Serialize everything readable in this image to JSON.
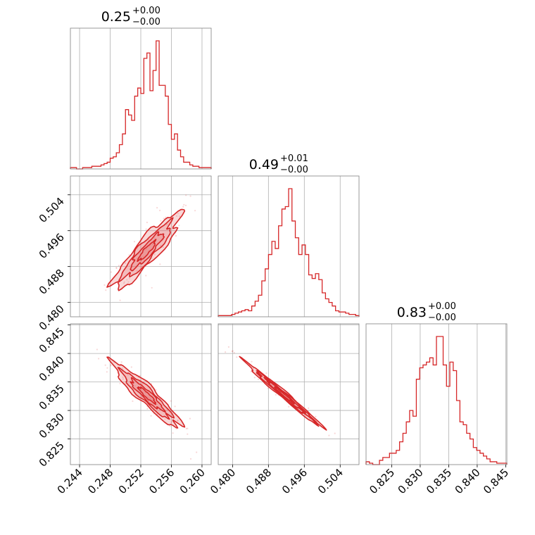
{
  "colors": {
    "series": "#d62728",
    "fill": "#e57373",
    "grid": "#b0b0b0",
    "axes": "#808080"
  },
  "chart_data": {
    "type": "corner",
    "grid": true,
    "parameters": [
      {
        "name": "p0",
        "title_value": "0.25",
        "title_plus": "+0.00",
        "title_minus": "−0.00",
        "range": [
          0.2428,
          0.2612
        ],
        "ticks": [
          "0.244",
          "0.248",
          "0.252",
          "0.256",
          "0.260"
        ]
      },
      {
        "name": "p1",
        "title_value": "0.49",
        "title_plus": "+0.01",
        "title_minus": "−0.00",
        "range": [
          0.4768,
          0.5082
        ],
        "ticks": [
          "0.480",
          "0.488",
          "0.496",
          "0.504"
        ]
      },
      {
        "name": "p2",
        "title_value": "0.83",
        "title_plus": "+0.00",
        "title_minus": "−0.00",
        "range": [
          0.8205,
          0.8452
        ],
        "ticks": [
          "0.825",
          "0.830",
          "0.835",
          "0.840",
          "0.845"
        ]
      }
    ],
    "histograms": [
      {
        "param": 0,
        "counts": [
          1,
          1,
          0,
          0,
          1,
          1,
          1,
          2,
          2,
          2,
          3,
          4,
          5,
          8,
          9,
          12,
          18,
          26,
          44,
          40,
          36,
          54,
          60,
          56,
          82,
          86,
          58,
          73,
          95,
          62,
          62,
          54,
          33,
          22,
          26,
          14,
          9,
          5,
          5,
          3,
          2,
          2,
          1,
          1,
          1,
          1
        ]
      },
      {
        "param": 1,
        "counts": [
          1,
          1,
          1,
          1,
          2,
          3,
          4,
          5,
          6,
          5,
          9,
          13,
          18,
          30,
          40,
          52,
          63,
          57,
          76,
          90,
          92,
          107,
          80,
          66,
          52,
          60,
          52,
          35,
          32,
          36,
          31,
          20,
          15,
          12,
          9,
          5,
          4,
          4,
          3,
          2,
          2,
          1
        ]
      },
      {
        "param": 2,
        "counts": [
          2,
          1,
          0,
          0,
          3,
          5,
          5,
          8,
          8,
          10,
          16,
          22,
          30,
          38,
          34,
          60,
          68,
          70,
          72,
          75,
          70,
          90,
          90,
          70,
          55,
          72,
          66,
          45,
          30,
          28,
          22,
          18,
          12,
          10,
          8,
          6,
          4,
          2,
          2,
          1,
          1,
          1
        ]
      }
    ],
    "correlations": [
      {
        "x_param": 0,
        "y_param": 1,
        "rho": 0.9
      },
      {
        "x_param": 0,
        "y_param": 2,
        "rho": -0.93
      },
      {
        "x_param": 1,
        "y_param": 2,
        "rho": -0.99
      }
    ],
    "centers": [
      0.2528,
      0.4915,
      0.8327
    ],
    "spreads": [
      0.0022,
      0.0042,
      0.0028
    ]
  }
}
